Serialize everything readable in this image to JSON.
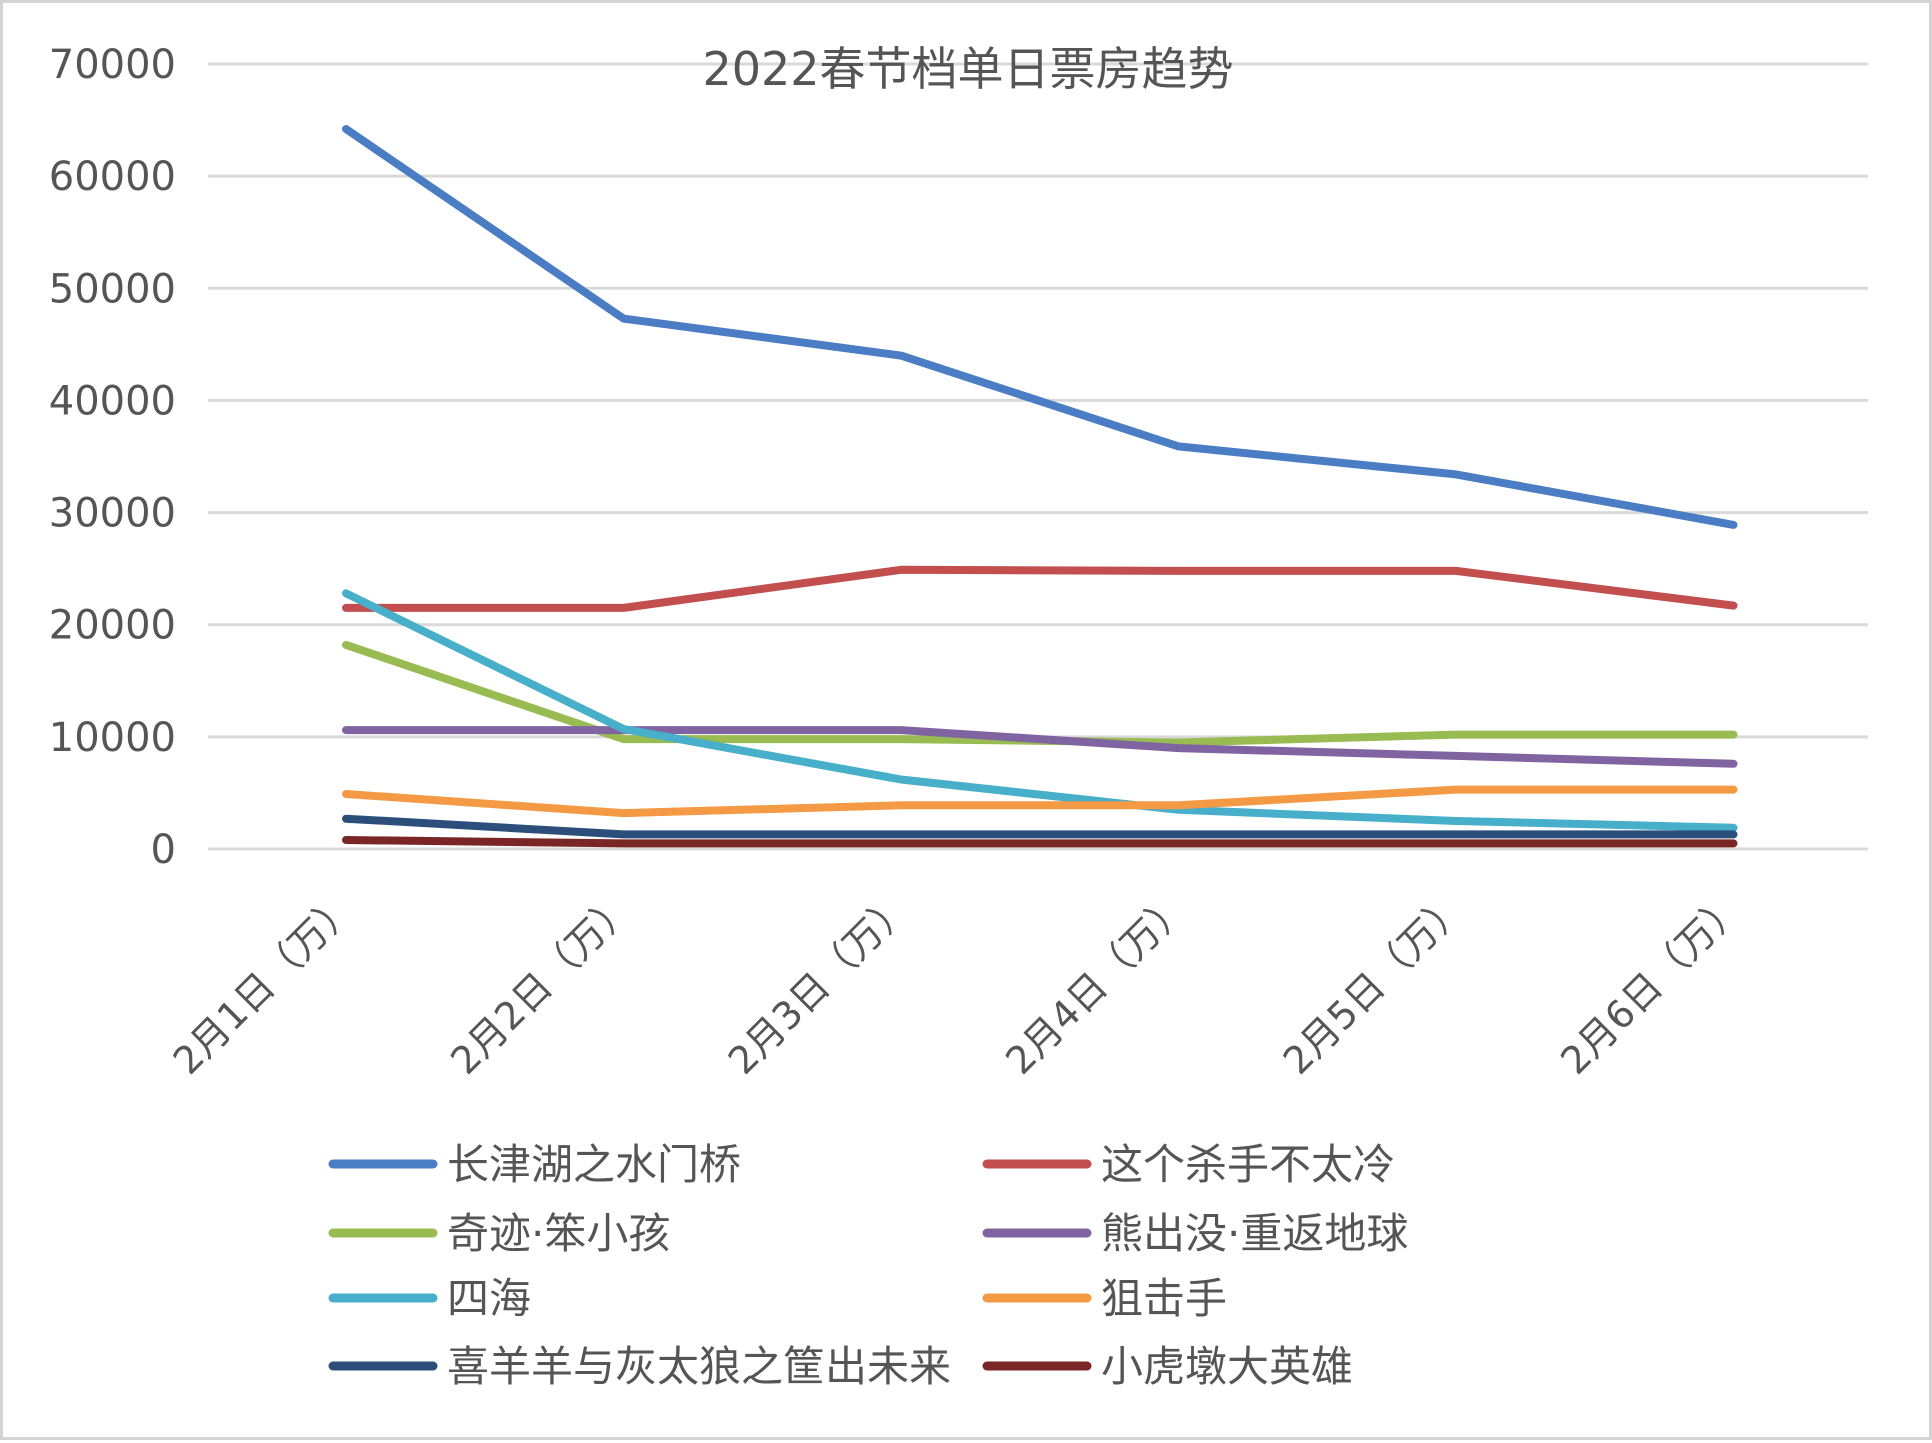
{
  "chart_data": {
    "type": "line",
    "title": "2022春节档单日票房趋势",
    "xlabel": "",
    "ylabel": "",
    "categories": [
      "2月1日（万）",
      "2月2日（万）",
      "2月3日（万）",
      "2月4日（万）",
      "2月5日（万）",
      "2月6日（万）"
    ],
    "ylim": [
      0,
      70000
    ],
    "yticks": [
      0,
      10000,
      20000,
      30000,
      40000,
      50000,
      60000,
      70000
    ],
    "grid": true,
    "legend_position": "bottom",
    "series": [
      {
        "name": "长津湖之水门桥",
        "color": "#4a7dc4",
        "values": [
          64200,
          47300,
          44000,
          35900,
          33400,
          28900
        ]
      },
      {
        "name": "这个杀手不太冷",
        "color": "#c24e4e",
        "values": [
          21500,
          21500,
          24900,
          24800,
          24800,
          21700
        ]
      },
      {
        "name": "奇迹·笨小孩",
        "color": "#98bb52",
        "values": [
          18200,
          9800,
          9800,
          9500,
          10200,
          10200
        ]
      },
      {
        "name": "熊出没·重返地球",
        "color": "#8064a2",
        "values": [
          10600,
          10600,
          10600,
          9000,
          8300,
          7600
        ]
      },
      {
        "name": "四海",
        "color": "#47afc9",
        "values": [
          22800,
          10700,
          6200,
          3500,
          2500,
          1900
        ]
      },
      {
        "name": "狙击手",
        "color": "#f49a45",
        "values": [
          4900,
          3200,
          3900,
          3900,
          5300,
          5300
        ]
      },
      {
        "name": "喜羊羊与灰太狼之筐出未来",
        "color": "#2c4e7a",
        "values": [
          2700,
          1300,
          1300,
          1300,
          1300,
          1300
        ]
      },
      {
        "name": "小虎墩大英雄",
        "color": "#7b2626",
        "values": [
          800,
          500,
          500,
          500,
          500,
          500
        ]
      }
    ]
  }
}
